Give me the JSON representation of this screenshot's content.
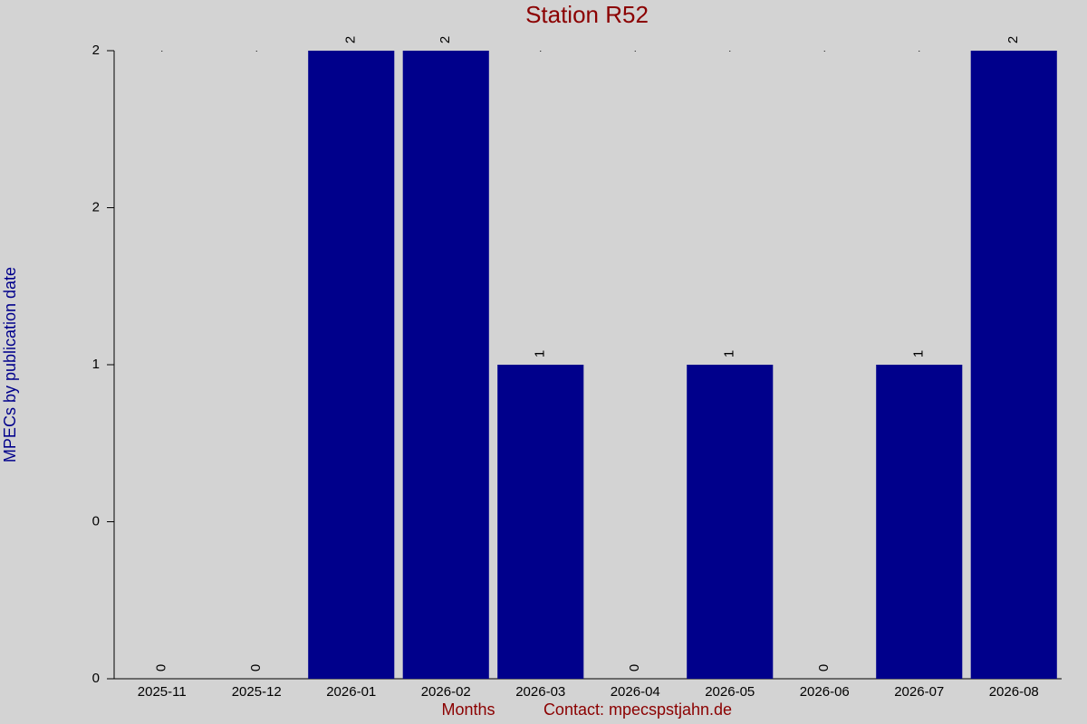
{
  "chart_data": {
    "type": "bar",
    "title": "Station R52",
    "xlabel": "Months",
    "ylabel": "MPECs by publication date",
    "note": "Contact: mpecspstjahn.de",
    "categories": [
      "2025-11",
      "2025-12",
      "2026-01",
      "2026-02",
      "2026-03",
      "2026-04",
      "2026-05",
      "2026-06",
      "2026-07",
      "2026-08"
    ],
    "values": [
      0,
      0,
      2,
      2,
      1,
      0,
      1,
      0,
      1,
      2
    ],
    "color": "#00008b",
    "ylim": [
      0,
      2
    ],
    "yticks": [
      0,
      {
        "value": 0.5,
        "label": "0"
      },
      1,
      {
        "value": 1.5,
        "label": "2"
      },
      2
    ]
  }
}
